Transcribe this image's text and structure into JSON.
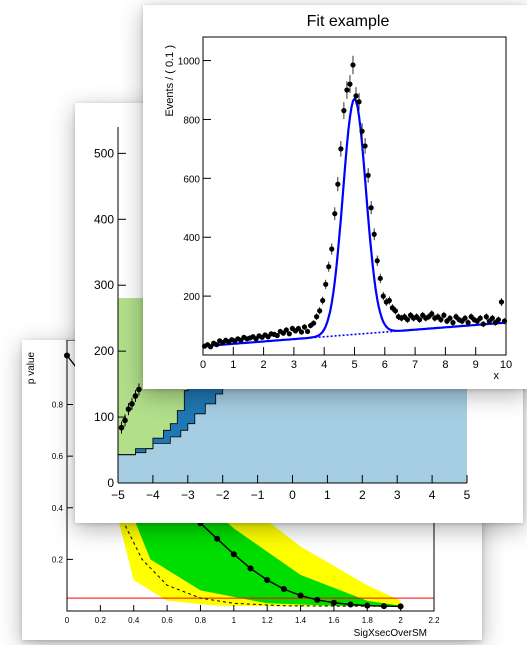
{
  "cards": {
    "back": {
      "ylabel": "p value",
      "xlabel": "SigXsecOverSM",
      "colors": {
        "yellow": "#ffff00",
        "green": "#00dd00",
        "line": "#000000",
        "threshold": "#ff0000"
      }
    },
    "mid": {
      "colors": {
        "light": "#a6cee3",
        "mid": "#1f78b4",
        "green": "#b2df8a",
        "points": "#000000"
      }
    },
    "front": {
      "title": "Fit example",
      "ylabel": "Events / ( 0.1 )",
      "xlabel": "x",
      "colors": {
        "fit": "#0000ff",
        "points": "#000000"
      }
    }
  },
  "chart_data": [
    {
      "type": "line",
      "title": "",
      "xlabel": "SigXsecOverSM",
      "ylabel": "p value",
      "xlim": [
        0,
        2.2
      ],
      "ylim": [
        0,
        1.05
      ],
      "x_ticks": [
        "0",
        "0.2",
        "0.4",
        "0.6",
        "0.8",
        "1",
        "1.2",
        "1.4",
        "1.6",
        "1.8",
        "2",
        "2.2"
      ],
      "y_ticks": [
        "0.2",
        "0.4",
        "0.6",
        "0.8"
      ],
      "series": [
        {
          "values": [
            [
              0.0,
              0.99
            ],
            [
              0.7,
              0.41
            ],
            [
              0.8,
              0.34
            ],
            [
              0.9,
              0.28
            ],
            [
              1.0,
              0.22
            ],
            [
              1.1,
              0.165
            ],
            [
              1.2,
              0.12
            ],
            [
              1.3,
              0.085
            ],
            [
              1.4,
              0.06
            ],
            [
              1.5,
              0.043
            ],
            [
              1.6,
              0.032
            ],
            [
              1.7,
              0.025
            ],
            [
              1.8,
              0.021
            ],
            [
              1.9,
              0.019
            ],
            [
              2.0,
              0.018
            ]
          ]
        }
      ],
      "band_upper_yellow": [
        [
          0.2,
          0.99
        ],
        [
          0.6,
          0.68
        ],
        [
          1.0,
          0.45
        ],
        [
          1.4,
          0.25
        ],
        [
          1.8,
          0.1
        ],
        [
          2.0,
          0.04
        ]
      ],
      "band_upper_green": [
        [
          0.2,
          0.99
        ],
        [
          0.6,
          0.55
        ],
        [
          1.0,
          0.32
        ],
        [
          1.4,
          0.14
        ],
        [
          1.8,
          0.04
        ],
        [
          2.0,
          0.02
        ]
      ],
      "band_lower_green": [
        [
          0.2,
          0.99
        ],
        [
          0.3,
          0.52
        ],
        [
          0.5,
          0.2
        ],
        [
          0.8,
          0.08
        ],
        [
          1.2,
          0.03
        ],
        [
          1.6,
          0.02
        ],
        [
          2.0,
          0.018
        ]
      ],
      "band_lower_yellow": [
        [
          0.2,
          0.99
        ],
        [
          0.25,
          0.5
        ],
        [
          0.4,
          0.12
        ],
        [
          0.6,
          0.04
        ],
        [
          0.9,
          0.02
        ],
        [
          1.4,
          0.018
        ],
        [
          2.0,
          0.018
        ]
      ],
      "expected": [
        [
          0.35,
          0.33
        ],
        [
          0.45,
          0.2
        ],
        [
          0.6,
          0.1
        ],
        [
          0.8,
          0.05
        ],
        [
          1.0,
          0.03
        ],
        [
          1.3,
          0.02
        ],
        [
          2.0,
          0.018
        ]
      ],
      "threshold": 0.05
    },
    {
      "type": "area",
      "title": "",
      "xlim": [
        -5,
        5
      ],
      "ylim": [
        0,
        540
      ],
      "x_ticks": [
        "−5",
        "−4",
        "−3",
        "−2",
        "−1",
        "0",
        "1",
        "2",
        "3",
        "4",
        "5"
      ],
      "y_ticks": [
        "0",
        "100",
        "200",
        "300",
        "400",
        "500"
      ],
      "outer_boundary": [
        [
          -5,
          43
        ],
        [
          -4.5,
          46
        ],
        [
          -4.2,
          52
        ],
        [
          -4,
          60
        ],
        [
          -3.5,
          70
        ],
        [
          -3.2,
          80
        ],
        [
          -3,
          90
        ],
        [
          -2.8,
          105
        ],
        [
          -2.5,
          120
        ],
        [
          -2.2,
          135
        ],
        [
          -2,
          145
        ],
        [
          -1.8,
          165
        ],
        [
          -1.5,
          185
        ],
        [
          -1.2,
          205
        ],
        [
          -1,
          220
        ],
        [
          -0.5,
          245
        ],
        [
          0,
          260
        ]
      ],
      "inner_boundary": [
        [
          -5,
          43
        ],
        [
          -4.5,
          52
        ],
        [
          -4,
          68
        ],
        [
          -3.7,
          80
        ],
        [
          -3.5,
          90
        ],
        [
          -3.3,
          110
        ],
        [
          -3.1,
          140
        ],
        [
          -3,
          170
        ],
        [
          -2.9,
          205
        ],
        [
          -2.8,
          235
        ],
        [
          -2.7,
          260
        ]
      ],
      "points": [
        [
          -4.9,
          84
        ],
        [
          -4.8,
          95
        ],
        [
          -4.7,
          112
        ],
        [
          -4.6,
          120
        ],
        [
          -4.5,
          132
        ],
        [
          -4.4,
          142
        ]
      ]
    },
    {
      "type": "scatter",
      "title": "Fit example",
      "xlabel": "x",
      "ylabel": "Events / ( 0.1 )",
      "xlim": [
        0,
        10
      ],
      "ylim": [
        0,
        1080
      ],
      "x_ticks": [
        "0",
        "1",
        "2",
        "3",
        "4",
        "5",
        "6",
        "7",
        "8",
        "9",
        "10"
      ],
      "y_ticks": [
        "200",
        "400",
        "600",
        "800",
        "1000"
      ],
      "points": [
        [
          0.05,
          30
        ],
        [
          0.15,
          35
        ],
        [
          0.25,
          28
        ],
        [
          0.35,
          40
        ],
        [
          0.45,
          35
        ],
        [
          0.55,
          48
        ],
        [
          0.65,
          42
        ],
        [
          0.75,
          50
        ],
        [
          0.85,
          45
        ],
        [
          0.95,
          52
        ],
        [
          1.05,
          48
        ],
        [
          1.15,
          55
        ],
        [
          1.25,
          50
        ],
        [
          1.35,
          60
        ],
        [
          1.45,
          55
        ],
        [
          1.55,
          58
        ],
        [
          1.65,
          62
        ],
        [
          1.75,
          55
        ],
        [
          1.85,
          65
        ],
        [
          1.95,
          60
        ],
        [
          2.05,
          68
        ],
        [
          2.15,
          62
        ],
        [
          2.25,
          72
        ],
        [
          2.35,
          70
        ],
        [
          2.45,
          66
        ],
        [
          2.55,
          80
        ],
        [
          2.65,
          74
        ],
        [
          2.75,
          85
        ],
        [
          2.85,
          72
        ],
        [
          2.95,
          90
        ],
        [
          3.05,
          82
        ],
        [
          3.15,
          90
        ],
        [
          3.25,
          78
        ],
        [
          3.35,
          95
        ],
        [
          3.45,
          80
        ],
        [
          3.55,
          100
        ],
        [
          3.65,
          108
        ],
        [
          3.75,
          130
        ],
        [
          3.85,
          150
        ],
        [
          3.95,
          185
        ],
        [
          4.05,
          240
        ],
        [
          4.15,
          300
        ],
        [
          4.25,
          360
        ],
        [
          4.35,
          480
        ],
        [
          4.45,
          580
        ],
        [
          4.55,
          700
        ],
        [
          4.65,
          830
        ],
        [
          4.75,
          900
        ],
        [
          4.85,
          920
        ],
        [
          4.95,
          985
        ],
        [
          5.05,
          880
        ],
        [
          5.15,
          860
        ],
        [
          5.25,
          760
        ],
        [
          5.35,
          710
        ],
        [
          5.45,
          610
        ],
        [
          5.55,
          500
        ],
        [
          5.65,
          410
        ],
        [
          5.75,
          320
        ],
        [
          5.85,
          260
        ],
        [
          5.95,
          200
        ],
        [
          6.05,
          180
        ],
        [
          6.15,
          185
        ],
        [
          6.25,
          160
        ],
        [
          6.35,
          150
        ],
        [
          6.45,
          130
        ],
        [
          6.55,
          125
        ],
        [
          6.65,
          130
        ],
        [
          6.75,
          120
        ],
        [
          6.85,
          135
        ],
        [
          6.95,
          125
        ],
        [
          7.05,
          130
        ],
        [
          7.15,
          120
        ],
        [
          7.25,
          135
        ],
        [
          7.35,
          125
        ],
        [
          7.45,
          130
        ],
        [
          7.55,
          140
        ],
        [
          7.65,
          125
        ],
        [
          7.75,
          130
        ],
        [
          7.85,
          120
        ],
        [
          7.95,
          135
        ],
        [
          8.05,
          115
        ],
        [
          8.15,
          125
        ],
        [
          8.25,
          110
        ],
        [
          8.35,
          130
        ],
        [
          8.45,
          120
        ],
        [
          8.55,
          115
        ],
        [
          8.65,
          125
        ],
        [
          8.75,
          110
        ],
        [
          8.85,
          130
        ],
        [
          8.95,
          120
        ],
        [
          9.05,
          115
        ],
        [
          9.15,
          125
        ],
        [
          9.25,
          105
        ],
        [
          9.35,
          130
        ],
        [
          9.45,
          115
        ],
        [
          9.55,
          125
        ],
        [
          9.65,
          110
        ],
        [
          9.75,
          120
        ],
        [
          9.85,
          180
        ],
        [
          9.95,
          115
        ]
      ],
      "fit": {
        "signal": {
          "amplitude": 800,
          "mean": 5.0,
          "sigma": 0.38
        },
        "background": {
          "at_x0": 30,
          "at_x10": 110
        }
      }
    }
  ]
}
